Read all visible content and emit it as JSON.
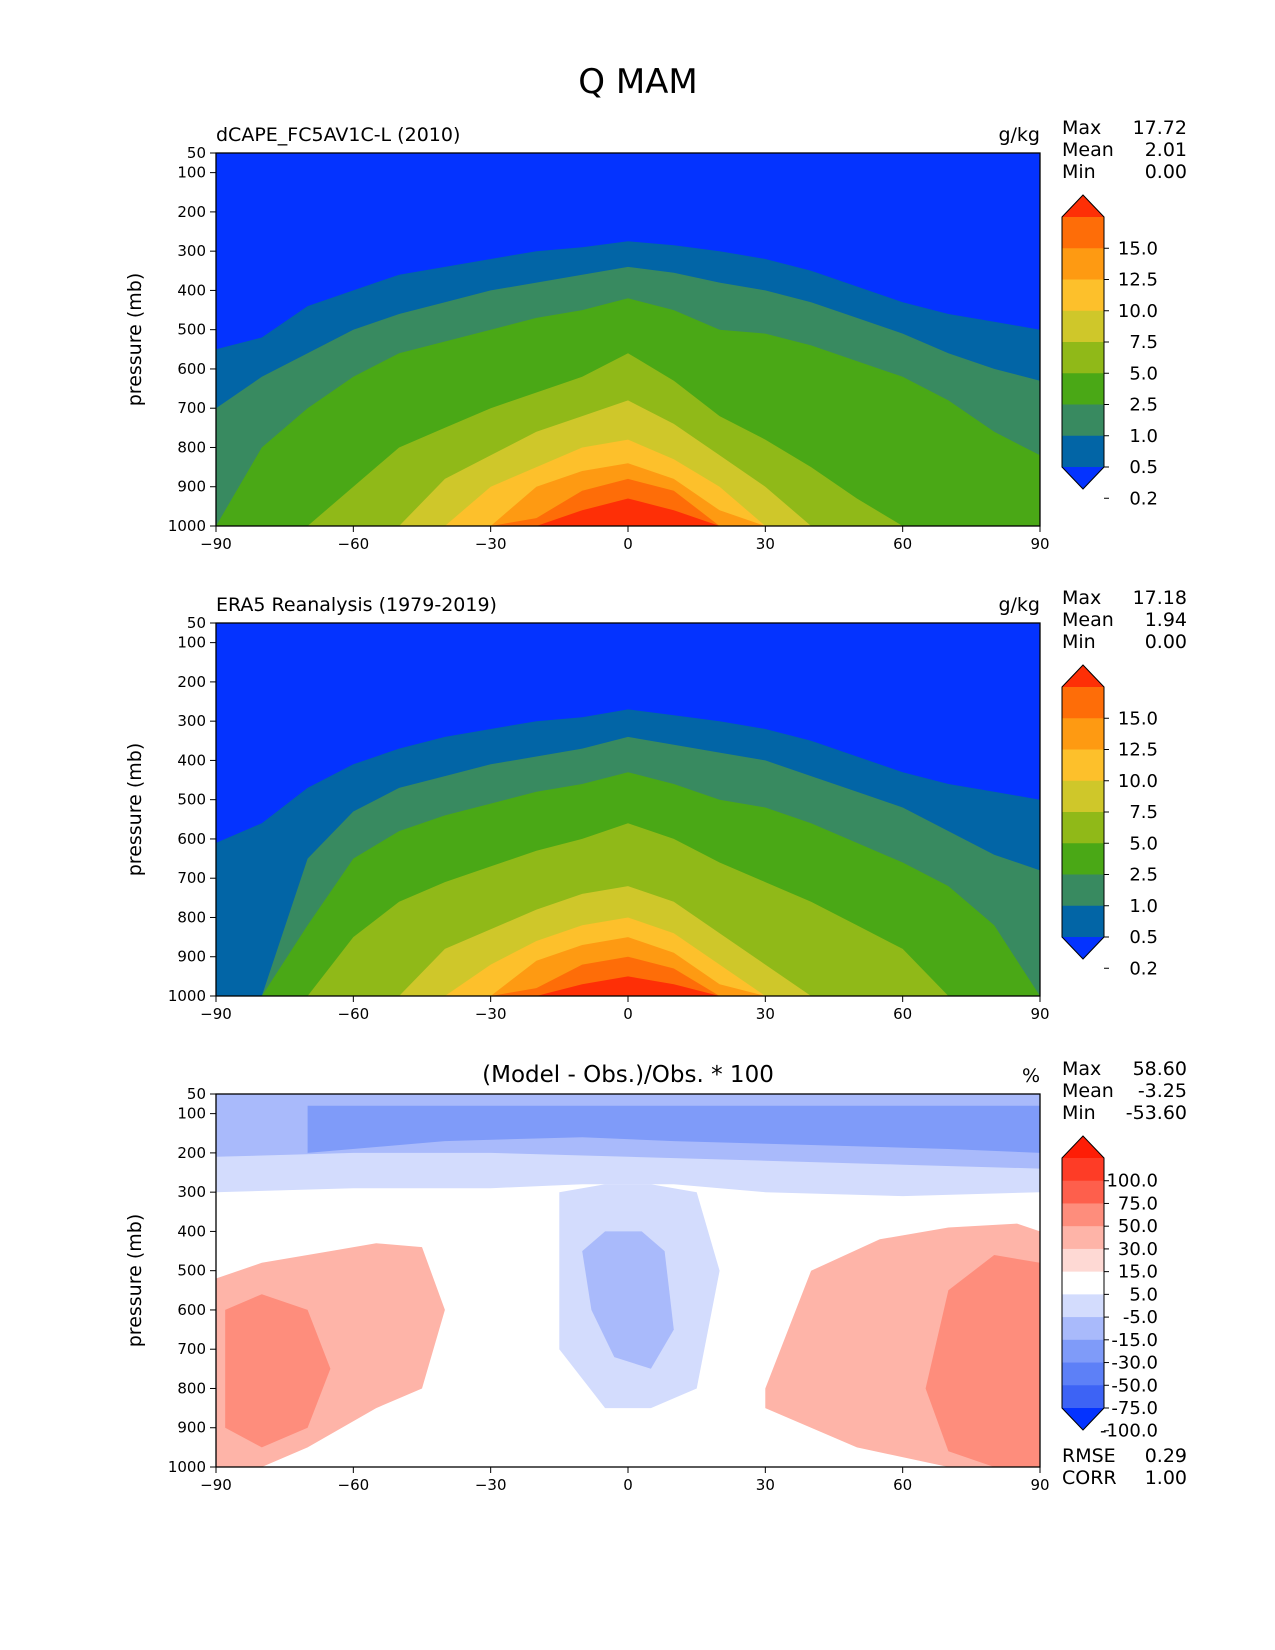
{
  "figure_title": "Q MAM",
  "chart_data": [
    {
      "type": "contour",
      "title": "dCAPE_FC5AV1C-L (2010)",
      "units": "g/kg",
      "ylabel": "pressure (mb)",
      "xlim": [
        -90,
        90
      ],
      "ylim": [
        1000,
        50
      ],
      "xticks": [
        "−90",
        "−60",
        "−30",
        "0",
        "30",
        "60",
        "90"
      ],
      "yticks": [
        "50",
        "100",
        "200",
        "300",
        "400",
        "500",
        "600",
        "700",
        "800",
        "900",
        "1000"
      ],
      "stats": [
        {
          "label": "Max",
          "value": "17.72"
        },
        {
          "label": "Mean",
          "value": "2.01"
        },
        {
          "label": "Min",
          "value": "0.00"
        }
      ],
      "levels": [
        0.2,
        0.5,
        1.0,
        2.5,
        5.0,
        7.5,
        10.0,
        12.5,
        15.0
      ],
      "level_labels": [
        "15.0",
        "12.5",
        "10.0",
        "7.5",
        "5.0",
        "2.5",
        "1.0",
        "0.5",
        "0.2"
      ],
      "colors": [
        "#0433ff",
        "#0265a6",
        "#388a60",
        "#4aa816",
        "#90b918",
        "#cfc72a",
        "#fdc02b",
        "#fe9a12",
        "#fe6d08",
        "#fe2f06"
      ],
      "contour_tops_hPa": {
        "lat": [
          -90,
          -80,
          -70,
          -60,
          -50,
          -40,
          -30,
          -20,
          -10,
          0,
          10,
          20,
          30,
          40,
          50,
          60,
          70,
          80,
          90
        ],
        "0.2": [
          550,
          520,
          440,
          400,
          360,
          340,
          320,
          300,
          290,
          275,
          285,
          300,
          320,
          350,
          390,
          430,
          460,
          480,
          500
        ],
        "0.5": [
          700,
          620,
          560,
          500,
          460,
          430,
          400,
          380,
          360,
          340,
          355,
          380,
          400,
          430,
          470,
          510,
          560,
          600,
          630
        ],
        "1.0": [
          1000,
          800,
          700,
          620,
          560,
          530,
          500,
          470,
          450,
          420,
          450,
          500,
          510,
          540,
          580,
          620,
          680,
          760,
          820
        ],
        "2.5": [
          1000,
          1000,
          1000,
          900,
          800,
          750,
          700,
          660,
          620,
          560,
          630,
          720,
          780,
          850,
          930,
          1000,
          1000,
          1000,
          1000
        ],
        "5.0": [
          1000,
          1000,
          1000,
          1000,
          1000,
          880,
          820,
          760,
          720,
          680,
          740,
          820,
          900,
          1000,
          1000,
          1000,
          1000,
          1000,
          1000
        ],
        "7.5": [
          1000,
          1000,
          1000,
          1000,
          1000,
          1000,
          900,
          850,
          800,
          780,
          830,
          900,
          1000,
          1000,
          1000,
          1000,
          1000,
          1000,
          1000
        ],
        "10.0": [
          1000,
          1000,
          1000,
          1000,
          1000,
          1000,
          1000,
          900,
          860,
          840,
          880,
          960,
          1000,
          1000,
          1000,
          1000,
          1000,
          1000,
          1000
        ],
        "12.5": [
          1000,
          1000,
          1000,
          1000,
          1000,
          1000,
          1000,
          980,
          910,
          880,
          910,
          1000,
          1000,
          1000,
          1000,
          1000,
          1000,
          1000,
          1000
        ],
        "15.0": [
          1000,
          1000,
          1000,
          1000,
          1000,
          1000,
          1000,
          1000,
          960,
          930,
          960,
          1000,
          1000,
          1000,
          1000,
          1000,
          1000,
          1000,
          1000
        ]
      }
    },
    {
      "type": "contour",
      "title": "ERA5 Reanalysis (1979-2019)",
      "units": "g/kg",
      "ylabel": "pressure (mb)",
      "xlim": [
        -90,
        90
      ],
      "ylim": [
        1000,
        50
      ],
      "xticks": [
        "−90",
        "−60",
        "−30",
        "0",
        "30",
        "60",
        "90"
      ],
      "yticks": [
        "50",
        "100",
        "200",
        "300",
        "400",
        "500",
        "600",
        "700",
        "800",
        "900",
        "1000"
      ],
      "stats": [
        {
          "label": "Max",
          "value": "17.18"
        },
        {
          "label": "Mean",
          "value": "1.94"
        },
        {
          "label": "Min",
          "value": "0.00"
        }
      ],
      "levels": [
        0.2,
        0.5,
        1.0,
        2.5,
        5.0,
        7.5,
        10.0,
        12.5,
        15.0
      ],
      "level_labels": [
        "15.0",
        "12.5",
        "10.0",
        "7.5",
        "5.0",
        "2.5",
        "1.0",
        "0.5",
        "0.2"
      ],
      "colors": [
        "#0433ff",
        "#0265a6",
        "#388a60",
        "#4aa816",
        "#90b918",
        "#cfc72a",
        "#fdc02b",
        "#fe9a12",
        "#fe6d08",
        "#fe2f06"
      ],
      "contour_tops_hPa": {
        "lat": [
          -90,
          -80,
          -70,
          -60,
          -50,
          -40,
          -30,
          -20,
          -10,
          0,
          10,
          20,
          30,
          40,
          50,
          60,
          70,
          80,
          90
        ],
        "0.2": [
          610,
          560,
          470,
          410,
          370,
          340,
          320,
          300,
          290,
          270,
          285,
          300,
          320,
          350,
          390,
          430,
          460,
          480,
          500
        ],
        "0.5": [
          1000,
          1000,
          650,
          530,
          470,
          440,
          410,
          390,
          370,
          340,
          360,
          380,
          400,
          440,
          480,
          520,
          580,
          640,
          680
        ],
        "1.0": [
          1000,
          1000,
          820,
          650,
          580,
          540,
          510,
          480,
          460,
          430,
          460,
          500,
          520,
          560,
          610,
          660,
          720,
          820,
          1000
        ],
        "2.5": [
          1000,
          1000,
          1000,
          850,
          760,
          710,
          670,
          630,
          600,
          560,
          600,
          660,
          710,
          760,
          820,
          880,
          1000,
          1000,
          1000
        ],
        "5.0": [
          1000,
          1000,
          1000,
          1000,
          1000,
          880,
          830,
          780,
          740,
          720,
          760,
          840,
          920,
          1000,
          1000,
          1000,
          1000,
          1000,
          1000
        ],
        "7.5": [
          1000,
          1000,
          1000,
          1000,
          1000,
          1000,
          920,
          860,
          820,
          800,
          840,
          920,
          1000,
          1000,
          1000,
          1000,
          1000,
          1000,
          1000
        ],
        "10.0": [
          1000,
          1000,
          1000,
          1000,
          1000,
          1000,
          1000,
          910,
          870,
          850,
          890,
          970,
          1000,
          1000,
          1000,
          1000,
          1000,
          1000,
          1000
        ],
        "12.5": [
          1000,
          1000,
          1000,
          1000,
          1000,
          1000,
          1000,
          980,
          920,
          900,
          930,
          1000,
          1000,
          1000,
          1000,
          1000,
          1000,
          1000,
          1000
        ],
        "15.0": [
          1000,
          1000,
          1000,
          1000,
          1000,
          1000,
          1000,
          1000,
          970,
          950,
          970,
          1000,
          1000,
          1000,
          1000,
          1000,
          1000,
          1000,
          1000
        ]
      }
    },
    {
      "type": "contour",
      "title": "(Model - Obs.)/Obs. * 100",
      "units": "%",
      "ylabel": "pressure (mb)",
      "xlim": [
        -90,
        90
      ],
      "ylim": [
        1000,
        50
      ],
      "xticks": [
        "−90",
        "−60",
        "−30",
        "0",
        "30",
        "60",
        "90"
      ],
      "yticks": [
        "50",
        "100",
        "200",
        "300",
        "400",
        "500",
        "600",
        "700",
        "800",
        "900",
        "1000"
      ],
      "stats": [
        {
          "label": "Max",
          "value": "58.60"
        },
        {
          "label": "Mean",
          "value": "-3.25"
        },
        {
          "label": "Min",
          "value": "-53.60"
        }
      ],
      "extra_stats": [
        {
          "label": "RMSE",
          "value": "0.29"
        },
        {
          "label": "CORR",
          "value": "1.00"
        }
      ],
      "levels": [
        -100.0,
        -75.0,
        -50.0,
        -30.0,
        -15.0,
        -5.0,
        5.0,
        15.0,
        30.0,
        50.0,
        75.0,
        100.0
      ],
      "level_labels": [
        "100.0",
        "75.0",
        "50.0",
        "30.0",
        "15.0",
        "5.0",
        "-5.0",
        "-15.0",
        "-30.0",
        "-50.0",
        "-75.0",
        "-100.0"
      ],
      "colors": [
        "#0433ff",
        "#3d63f5",
        "#5d80f7",
        "#7f9bf9",
        "#a9bafb",
        "#d3dcfd",
        "#ffffff",
        "#fed9d4",
        "#feb4a8",
        "#fe8d7c",
        "#fe5f4c",
        "#fe3c26",
        "#fe1d06"
      ],
      "regions": [
        {
          "level": "-15.0",
          "lat": [
            -90,
            -60,
            -30,
            -10,
            10,
            30,
            60,
            90,
            90,
            -90
          ],
          "p": [
            300,
            290,
            290,
            280,
            280,
            300,
            310,
            300,
            50,
            50
          ]
        },
        {
          "level": "-30.0",
          "lat": [
            -90,
            -60,
            -30,
            0,
            30,
            60,
            90,
            90,
            -90
          ],
          "p": [
            210,
            200,
            200,
            210,
            220,
            230,
            240,
            50,
            50
          ]
        },
        {
          "level": "-50.0",
          "lat": [
            -70,
            -40,
            -10,
            10,
            40,
            70,
            90,
            90,
            -70
          ],
          "p": [
            200,
            170,
            160,
            170,
            180,
            190,
            200,
            80,
            80
          ]
        },
        {
          "level": "-15.0",
          "lat": [
            -15,
            -5,
            5,
            15,
            20,
            15,
            5,
            -5,
            -15
          ],
          "p": [
            300,
            280,
            280,
            300,
            500,
            800,
            850,
            850,
            700
          ]
        },
        {
          "level": "-30.0",
          "lat": [
            -10,
            -5,
            3,
            8,
            10,
            5,
            -3,
            -8
          ],
          "p": [
            450,
            400,
            400,
            450,
            650,
            750,
            720,
            600
          ]
        },
        {
          "level": "15.0",
          "lat": [
            -90,
            -80,
            -65,
            -55,
            -45,
            -40,
            -45,
            -55,
            -70,
            -80,
            -90
          ],
          "p": [
            520,
            480,
            450,
            430,
            440,
            600,
            800,
            850,
            950,
            1000,
            1000
          ]
        },
        {
          "level": "30.0",
          "lat": [
            -88,
            -80,
            -70,
            -65,
            -70,
            -80,
            -88
          ],
          "p": [
            600,
            560,
            600,
            750,
            900,
            950,
            900
          ]
        },
        {
          "level": "15.0",
          "lat": [
            30,
            40,
            55,
            70,
            85,
            90,
            90,
            70,
            50,
            40,
            30
          ],
          "p": [
            800,
            500,
            420,
            390,
            380,
            400,
            1000,
            1000,
            950,
            900,
            850
          ]
        },
        {
          "level": "30.0",
          "lat": [
            70,
            80,
            90,
            90,
            80,
            70,
            65
          ],
          "p": [
            550,
            460,
            480,
            1000,
            1000,
            960,
            800
          ]
        }
      ]
    }
  ]
}
